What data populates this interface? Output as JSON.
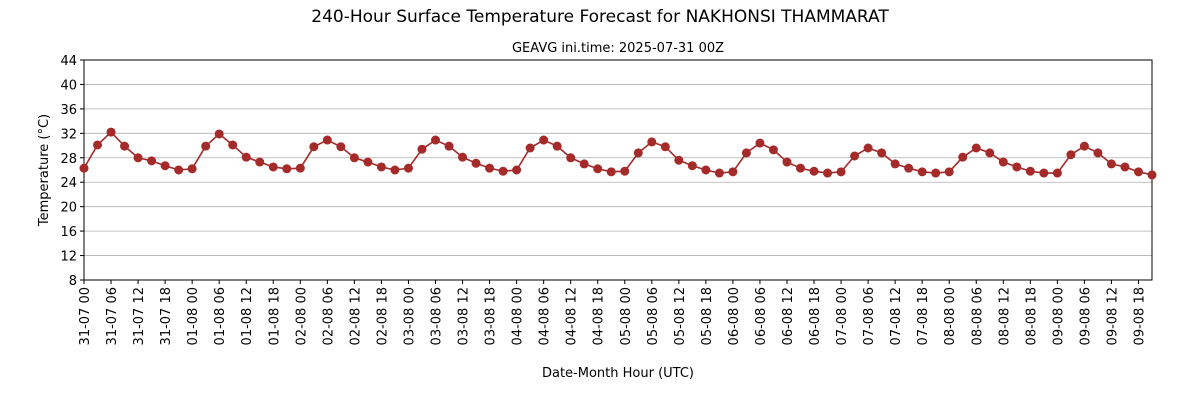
{
  "chart_data": {
    "type": "line",
    "title": "240-Hour Surface Temperature Forecast for NAKHONSI THAMMARAT",
    "subtitle": "GEAVG ini.time: 2025-07-31 00Z",
    "x_label": "Date-Month Hour (UTC)",
    "y_label": "Temperature (°C)",
    "categories": [
      "31-07 00",
      null,
      "31-07 06",
      null,
      "31-07 12",
      null,
      "31-07 18",
      null,
      "01-08 00",
      null,
      "01-08 06",
      null,
      "01-08 12",
      null,
      "01-08 18",
      null,
      "02-08 00",
      null,
      "02-08 06",
      null,
      "02-08 12",
      null,
      "02-08 18",
      null,
      "03-08 00",
      null,
      "03-08 06",
      null,
      "03-08 12",
      null,
      "03-08 18",
      null,
      "04-08 00",
      null,
      "04-08 06",
      null,
      "04-08 12",
      null,
      "04-08 18",
      null,
      "05-08 00",
      null,
      "05-08 06",
      null,
      "05-08 12",
      null,
      "05-08 18",
      null,
      "06-08 00",
      null,
      "06-08 06",
      null,
      "06-08 12",
      null,
      "06-08 18",
      null,
      "07-08 00",
      null,
      "07-08 06",
      null,
      "07-08 12",
      null,
      "07-08 18",
      null,
      "08-08 00",
      null,
      "08-08 06",
      null,
      "08-08 12",
      null,
      "08-08 18",
      null,
      "09-08 00",
      null,
      "09-08 06",
      null,
      "09-08 12",
      null,
      "09-08 18",
      null
    ],
    "series": [
      {
        "name": "Temperature",
        "color": "#a52a2a",
        "values": [
          26.3,
          30.1,
          32.2,
          29.9,
          28.0,
          27.5,
          26.7,
          26.0,
          26.2,
          29.9,
          31.9,
          30.1,
          28.1,
          27.3,
          26.5,
          26.2,
          26.3,
          29.8,
          30.9,
          29.8,
          28.0,
          27.3,
          26.5,
          26.0,
          26.3,
          29.4,
          30.9,
          29.9,
          28.1,
          27.1,
          26.3,
          25.8,
          26.0,
          29.6,
          30.9,
          29.9,
          28.0,
          27.0,
          26.2,
          25.7,
          25.8,
          28.8,
          30.6,
          29.8,
          27.6,
          26.7,
          26.0,
          25.5,
          25.7,
          28.8,
          30.4,
          29.3,
          27.3,
          26.3,
          25.8,
          25.5,
          25.7,
          28.3,
          29.6,
          28.8,
          27.0,
          26.3,
          25.7,
          25.5,
          25.7,
          28.1,
          29.6,
          28.8,
          27.3,
          26.5,
          25.8,
          25.5,
          25.5,
          28.5,
          29.9,
          28.8,
          27.0,
          26.5,
          25.7,
          25.2
        ]
      }
    ],
    "ylim": [
      8,
      44
    ],
    "yticks": [
      8,
      12,
      16,
      20,
      24,
      28,
      32,
      36,
      40,
      44
    ],
    "grid": true
  }
}
